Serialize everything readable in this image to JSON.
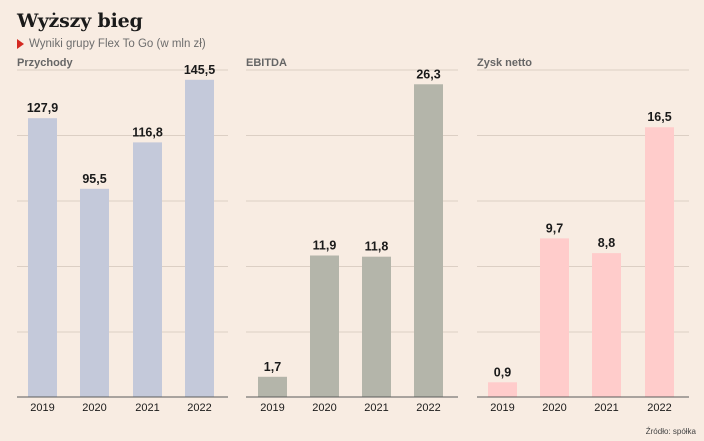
{
  "header": {
    "title": "Wyższy bieg",
    "subtitle": "Wyniki grupy Flex To Go (w mln zł)"
  },
  "footer": {
    "source": "Źródło: spółka"
  },
  "colors": {
    "background": "#f8ece2",
    "przychody": "#c4c9da",
    "ebitda": "#b4b5aa",
    "zysk": "#ffcccb",
    "accent": "#d42a22"
  },
  "chart_data": [
    {
      "type": "bar",
      "title": "Przychody",
      "categories": [
        "2019",
        "2020",
        "2021",
        "2022"
      ],
      "values": [
        127.9,
        95.5,
        116.8,
        145.5
      ],
      "labels": [
        "127,9",
        "95,5",
        "116,8",
        "145,5"
      ],
      "ylim": [
        0,
        150
      ],
      "grid": true,
      "color": "#c4c9da"
    },
    {
      "type": "bar",
      "title": "EBITDA",
      "categories": [
        "2019",
        "2020",
        "2021",
        "2022"
      ],
      "values": [
        1.7,
        11.9,
        11.8,
        26.3
      ],
      "labels": [
        "1,7",
        "11,9",
        "11,8",
        "26,3"
      ],
      "ylim": [
        0,
        27.5
      ],
      "grid": true,
      "color": "#b4b5aa"
    },
    {
      "type": "bar",
      "title": "Zysk netto",
      "categories": [
        "2019",
        "2020",
        "2021",
        "2022"
      ],
      "values": [
        0.9,
        9.7,
        8.8,
        16.5
      ],
      "labels": [
        "0,9",
        "9,7",
        "8,8",
        "16,5"
      ],
      "ylim": [
        0,
        20
      ],
      "grid": true,
      "color": "#ffcccb"
    }
  ]
}
